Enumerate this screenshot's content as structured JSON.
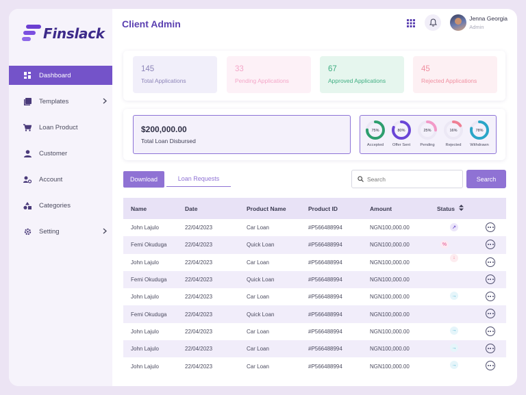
{
  "brand": {
    "name": "Finslack"
  },
  "sidebar": {
    "items": [
      {
        "label": "Dashboard",
        "icon": "dashboard-grid-icon",
        "active": true
      },
      {
        "label": "Templates",
        "icon": "templates-icon",
        "has_submenu": true
      },
      {
        "label": "Loan Product",
        "icon": "cart-icon"
      },
      {
        "label": "Customer",
        "icon": "user-icon"
      },
      {
        "label": "Account",
        "icon": "account-user-gear-icon"
      },
      {
        "label": "Categories",
        "icon": "categories-shapes-icon"
      },
      {
        "label": "Setting",
        "icon": "gear-icon",
        "has_submenu": true
      }
    ]
  },
  "header": {
    "title": "Client Admin",
    "user": {
      "name": "Jenna Georgia",
      "role": "Admin"
    }
  },
  "stats": [
    {
      "value": "145",
      "label": "Total Applications",
      "color": "#8c84b8",
      "bg": "#f1effa"
    },
    {
      "value": "33",
      "label": "Pending Applications",
      "color": "#f4a6c8",
      "bg": "#fdf1f7"
    },
    {
      "value": "67",
      "label": "Approved Applications",
      "color": "#3fae82",
      "bg": "#e6f6ee"
    },
    {
      "value": "45",
      "label": "Rejected Applications",
      "color": "#f08fa0",
      "bg": "#fdf0f3"
    }
  ],
  "disbursed": {
    "amount": "$200,000.00",
    "label": "Total Loan Disbursed"
  },
  "rates": [
    {
      "label": "Accepted",
      "value": "75%",
      "percent": 75,
      "color": "#2e9e6e"
    },
    {
      "label": "Offer Sent",
      "value": "80%",
      "percent": 80,
      "color": "#6a45d6"
    },
    {
      "label": "Pending",
      "value": "25%",
      "percent": 25,
      "color": "#f29ac8"
    },
    {
      "label": "Rejected",
      "value": "16%",
      "percent": 16,
      "color": "#ef7f94"
    },
    {
      "label": "Withdrawn",
      "value": "78%",
      "percent": 78,
      "color": "#2aa6c8"
    }
  ],
  "toolbar": {
    "download_label": "Download",
    "tab_label": "Loan Requests",
    "search_placeholder": "Search",
    "search_button": "Search"
  },
  "table": {
    "columns": [
      "Name",
      "Date",
      "Product Name",
      "Product ID",
      "Amount",
      "Status"
    ],
    "rows": [
      {
        "name": "John Lajulo",
        "date": "22/04/2023",
        "product": "Car Loan",
        "id": "#P566488994",
        "amount": "NGN100,000.00",
        "status": "pending"
      },
      {
        "name": "Femi Okuduga",
        "date": "22/04/2023",
        "product": "Quick Loan",
        "id": "#P566488994",
        "amount": "NGN100,000.00",
        "status": "partial"
      },
      {
        "name": "John Lajulo",
        "date": "22/04/2023",
        "product": "Car Loan",
        "id": "#P566488994",
        "amount": "NGN100,000.00",
        "status": "rejected"
      },
      {
        "name": "Femi Okuduga",
        "date": "22/04/2023",
        "product": "Quick Loan",
        "id": "#P566488994",
        "amount": "NGN100,000.00",
        "status": "none"
      },
      {
        "name": "John Lajulo",
        "date": "22/04/2023",
        "product": "Car Loan",
        "id": "#P566488994",
        "amount": "NGN100,000.00",
        "status": "forwarded"
      },
      {
        "name": "Femi Okuduga",
        "date": "22/04/2023",
        "product": "Quick Loan",
        "id": "#P566488994",
        "amount": "NGN100,000.00",
        "status": "none"
      },
      {
        "name": "John Lajulo",
        "date": "22/04/2023",
        "product": "Car Loan",
        "id": "#P566488994",
        "amount": "NGN100,000.00",
        "status": "forwarded"
      },
      {
        "name": "John Lajulo",
        "date": "22/04/2023",
        "product": "Car Loan",
        "id": "#P566488994",
        "amount": "NGN100,000.00",
        "status": "forwarded"
      },
      {
        "name": "John Lajulo",
        "date": "22/04/2023",
        "product": "Car Loan",
        "id": "#P566488994",
        "amount": "NGN100,000.00",
        "status": "forwarded"
      }
    ]
  }
}
